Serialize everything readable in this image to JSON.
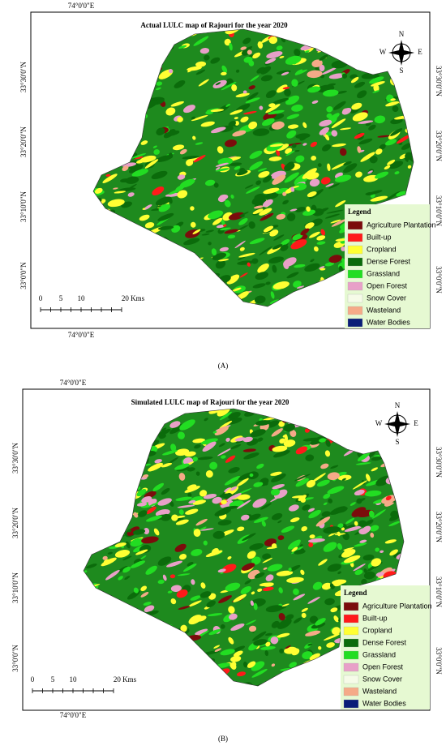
{
  "panels": [
    {
      "label": "(A)",
      "title": "Actual LULC map of Rajouri for the year 2020",
      "top_coord": "74°0'0\"E",
      "bottom_coord": "74°0'0\"E",
      "left_coords": [
        "33°30'0\"N",
        "33°20'0\"N",
        "33°10'0\"N",
        "33°0'0\"N"
      ],
      "right_coords": [
        "33°30'0\"N",
        "33°20'0\"N",
        "33°10'0\"N",
        "33°0'0\"N"
      ],
      "compass": {
        "n": "N",
        "s": "S",
        "e": "E",
        "w": "W"
      },
      "scale": [
        "0",
        "5",
        "10",
        "20 Kms"
      ],
      "legend": {
        "title": "Legend",
        "items": [
          {
            "name": "Agriculture Plantation",
            "color": "#7b0c0c"
          },
          {
            "name": "Built-up",
            "color": "#ff1a1a"
          },
          {
            "name": "Cropland",
            "color": "#ffff33"
          },
          {
            "name": "Dense Forest",
            "color": "#0b6b0b"
          },
          {
            "name": "Grassland",
            "color": "#22dd22"
          },
          {
            "name": "Open Forest",
            "color": "#e8a0c8"
          },
          {
            "name": "Snow Cover",
            "color": "#f6fbe8"
          },
          {
            "name": "Wasteland",
            "color": "#f5aa88"
          },
          {
            "name": "Water Bodies",
            "color": "#0a1e78"
          }
        ]
      }
    },
    {
      "label": "(B)",
      "title": "Simulated LULC map of Rajouri for the year 2020",
      "top_coord": "74°0'0\"E",
      "bottom_coord": "74°0'0\"E",
      "left_coords": [
        "33°30'0\"N",
        "33°20'0\"N",
        "33°10'0\"N",
        "33°0'0\"N"
      ],
      "right_coords": [
        "33°30'0\"N",
        "33°20'0\"N",
        "33°10'0\"N",
        "33°0'0\"N"
      ],
      "compass": {
        "n": "N",
        "s": "S",
        "e": "E",
        "w": "W"
      },
      "scale": [
        "0",
        "5",
        "10",
        "20 Kms"
      ],
      "legend": {
        "title": "Legend",
        "items": [
          {
            "name": "Agriculture Plantation",
            "color": "#7b0c0c"
          },
          {
            "name": "Built-up",
            "color": "#ff1a1a"
          },
          {
            "name": "Cropland",
            "color": "#ffff33"
          },
          {
            "name": "Dense Forest",
            "color": "#0b6b0b"
          },
          {
            "name": "Grassland",
            "color": "#22dd22"
          },
          {
            "name": "Open Forest",
            "color": "#e8a0c8"
          },
          {
            "name": "Snow Cover",
            "color": "#f6fbe8"
          },
          {
            "name": "Wasteland",
            "color": "#f5aa88"
          },
          {
            "name": "Water Bodies",
            "color": "#0a1e78"
          }
        ]
      }
    }
  ]
}
